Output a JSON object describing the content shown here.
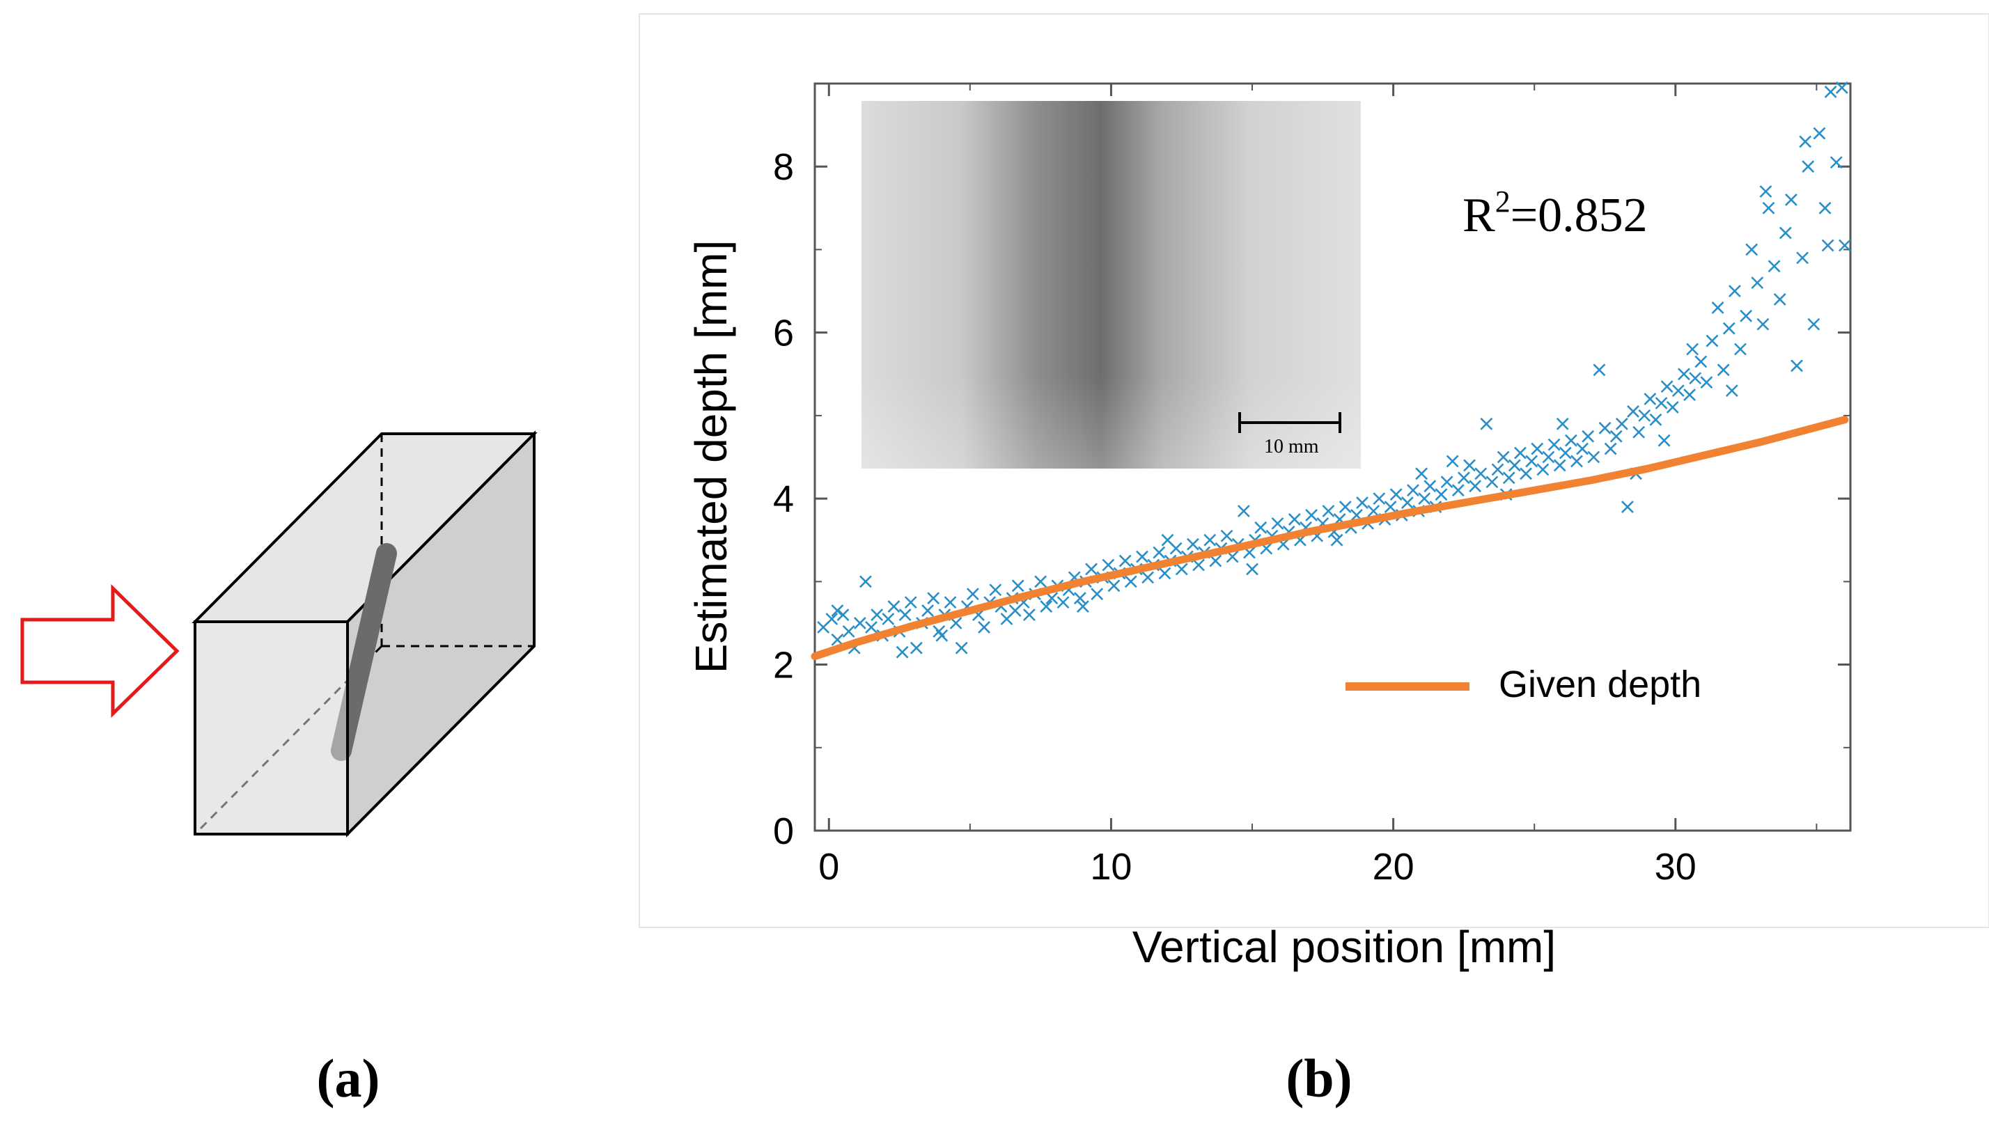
{
  "panel_a": {
    "label": "(a)",
    "arrow_color": "#e31b1b",
    "box_fill": "#d6d6d6",
    "rod_color": "#6b6b6b"
  },
  "panel_b": {
    "label": "(b)",
    "r_squared": {
      "prefix": "R",
      "sup": "2",
      "value": "=0.852"
    },
    "inset": {
      "scale_bar_label": "10 mm"
    },
    "legend_label": "Given depth"
  },
  "chart_data": {
    "type": "scatter",
    "xlabel": "Vertical position [mm]",
    "ylabel": "Estimated depth [mm]",
    "xlim": [
      -0.5,
      36.2
    ],
    "ylim": [
      0,
      9
    ],
    "xticks": [
      0,
      10,
      20,
      30
    ],
    "xticks_labels": [
      "0",
      "10",
      "20",
      "30"
    ],
    "yticks": [
      0,
      2,
      4,
      6,
      8
    ],
    "yticks_labels": [
      "0",
      "2",
      "4",
      "6",
      "8"
    ],
    "grid": false,
    "legend": "right-lower",
    "series": [
      {
        "name": "Estimated depth",
        "marker": "x",
        "color": "#2a8fc6",
        "points": [
          [
            -0.2,
            2.45
          ],
          [
            0.1,
            2.55
          ],
          [
            0.3,
            2.3
          ],
          [
            0.5,
            2.6
          ],
          [
            0.7,
            2.4
          ],
          [
            0.9,
            2.2
          ],
          [
            1.1,
            2.5
          ],
          [
            1.3,
            3.0
          ],
          [
            1.5,
            2.45
          ],
          [
            1.7,
            2.6
          ],
          [
            1.9,
            2.35
          ],
          [
            2.1,
            2.55
          ],
          [
            2.3,
            2.7
          ],
          [
            2.5,
            2.4
          ],
          [
            2.7,
            2.6
          ],
          [
            2.9,
            2.75
          ],
          [
            3.1,
            2.2
          ],
          [
            3.3,
            2.5
          ],
          [
            3.5,
            2.65
          ],
          [
            3.7,
            2.8
          ],
          [
            3.9,
            2.4
          ],
          [
            4.1,
            2.6
          ],
          [
            4.3,
            2.75
          ],
          [
            4.5,
            2.5
          ],
          [
            4.7,
            2.2
          ],
          [
            4.9,
            2.7
          ],
          [
            5.1,
            2.85
          ],
          [
            5.3,
            2.6
          ],
          [
            5.5,
            2.45
          ],
          [
            5.7,
            2.75
          ],
          [
            5.9,
            2.9
          ],
          [
            6.1,
            2.7
          ],
          [
            6.3,
            2.55
          ],
          [
            6.5,
            2.8
          ],
          [
            6.7,
            2.95
          ],
          [
            6.9,
            2.75
          ],
          [
            7.1,
            2.6
          ],
          [
            7.3,
            2.85
          ],
          [
            7.5,
            3.0
          ],
          [
            7.7,
            2.7
          ],
          [
            7.9,
            2.8
          ],
          [
            8.1,
            2.95
          ],
          [
            8.3,
            2.75
          ],
          [
            8.5,
            2.9
          ],
          [
            8.7,
            3.05
          ],
          [
            8.9,
            2.8
          ],
          [
            9.1,
            3.0
          ],
          [
            9.3,
            3.15
          ],
          [
            9.5,
            2.85
          ],
          [
            9.7,
            3.05
          ],
          [
            9.9,
            3.2
          ],
          [
            10.1,
            2.95
          ],
          [
            10.3,
            3.1
          ],
          [
            10.5,
            3.25
          ],
          [
            10.7,
            3.0
          ],
          [
            10.9,
            3.15
          ],
          [
            11.1,
            3.3
          ],
          [
            11.3,
            3.05
          ],
          [
            11.5,
            3.2
          ],
          [
            11.7,
            3.35
          ],
          [
            11.9,
            3.1
          ],
          [
            12.1,
            3.25
          ],
          [
            12.3,
            3.4
          ],
          [
            12.5,
            3.15
          ],
          [
            12.7,
            3.3
          ],
          [
            12.9,
            3.45
          ],
          [
            13.1,
            3.2
          ],
          [
            13.3,
            3.35
          ],
          [
            13.5,
            3.5
          ],
          [
            13.7,
            3.25
          ],
          [
            13.9,
            3.4
          ],
          [
            14.1,
            3.55
          ],
          [
            14.3,
            3.3
          ],
          [
            14.5,
            3.45
          ],
          [
            14.7,
            3.85
          ],
          [
            14.9,
            3.35
          ],
          [
            15.1,
            3.5
          ],
          [
            15.3,
            3.65
          ],
          [
            15.5,
            3.4
          ],
          [
            15.7,
            3.55
          ],
          [
            15.9,
            3.7
          ],
          [
            16.1,
            3.45
          ],
          [
            16.3,
            3.6
          ],
          [
            16.5,
            3.75
          ],
          [
            16.7,
            3.5
          ],
          [
            16.9,
            3.65
          ],
          [
            17.1,
            3.8
          ],
          [
            17.3,
            3.55
          ],
          [
            17.5,
            3.7
          ],
          [
            17.7,
            3.85
          ],
          [
            17.9,
            3.6
          ],
          [
            18.1,
            3.75
          ],
          [
            18.3,
            3.9
          ],
          [
            18.5,
            3.65
          ],
          [
            18.7,
            3.8
          ],
          [
            18.9,
            3.95
          ],
          [
            19.1,
            3.7
          ],
          [
            19.3,
            3.85
          ],
          [
            19.5,
            4.0
          ],
          [
            19.7,
            3.75
          ],
          [
            19.9,
            3.9
          ],
          [
            20.1,
            4.05
          ],
          [
            20.3,
            3.8
          ],
          [
            20.5,
            3.95
          ],
          [
            20.7,
            4.1
          ],
          [
            20.9,
            3.85
          ],
          [
            21.1,
            4.0
          ],
          [
            21.3,
            4.15
          ],
          [
            21.5,
            3.9
          ],
          [
            21.7,
            4.05
          ],
          [
            21.9,
            4.2
          ],
          [
            22.1,
            4.45
          ],
          [
            22.3,
            4.1
          ],
          [
            22.5,
            4.25
          ],
          [
            22.7,
            4.4
          ],
          [
            22.9,
            4.15
          ],
          [
            23.1,
            4.3
          ],
          [
            23.3,
            4.9
          ],
          [
            23.5,
            4.2
          ],
          [
            23.7,
            4.35
          ],
          [
            23.9,
            4.5
          ],
          [
            24.1,
            4.25
          ],
          [
            24.3,
            4.4
          ],
          [
            24.5,
            4.55
          ],
          [
            24.7,
            4.3
          ],
          [
            24.9,
            4.45
          ],
          [
            25.1,
            4.6
          ],
          [
            25.3,
            4.35
          ],
          [
            25.5,
            4.5
          ],
          [
            25.7,
            4.65
          ],
          [
            25.9,
            4.4
          ],
          [
            26.1,
            4.55
          ],
          [
            26.3,
            4.7
          ],
          [
            26.5,
            4.45
          ],
          [
            26.7,
            4.6
          ],
          [
            26.9,
            4.75
          ],
          [
            27.1,
            4.5
          ],
          [
            27.3,
            5.55
          ],
          [
            27.5,
            4.85
          ],
          [
            27.7,
            4.6
          ],
          [
            27.9,
            4.75
          ],
          [
            28.1,
            4.9
          ],
          [
            28.3,
            3.9
          ],
          [
            28.5,
            5.05
          ],
          [
            28.7,
            4.8
          ],
          [
            28.9,
            5.0
          ],
          [
            29.1,
            5.2
          ],
          [
            29.3,
            4.95
          ],
          [
            29.5,
            5.15
          ],
          [
            29.7,
            5.35
          ],
          [
            29.9,
            5.1
          ],
          [
            30.1,
            5.3
          ],
          [
            30.3,
            5.5
          ],
          [
            30.5,
            5.25
          ],
          [
            30.7,
            5.45
          ],
          [
            30.9,
            5.65
          ],
          [
            31.1,
            5.4
          ],
          [
            31.3,
            5.9
          ],
          [
            31.5,
            6.3
          ],
          [
            31.7,
            5.55
          ],
          [
            31.9,
            6.05
          ],
          [
            32.1,
            6.5
          ],
          [
            32.3,
            5.8
          ],
          [
            32.5,
            6.2
          ],
          [
            32.7,
            7.0
          ],
          [
            32.9,
            6.6
          ],
          [
            33.1,
            6.1
          ],
          [
            33.3,
            7.5
          ],
          [
            33.5,
            6.8
          ],
          [
            33.7,
            6.4
          ],
          [
            33.9,
            7.2
          ],
          [
            34.1,
            7.6
          ],
          [
            34.3,
            5.6
          ],
          [
            34.5,
            6.9
          ],
          [
            34.7,
            8.0
          ],
          [
            34.9,
            6.1
          ],
          [
            35.1,
            8.4
          ],
          [
            35.3,
            7.5
          ],
          [
            35.5,
            8.9
          ],
          [
            35.7,
            8.05
          ],
          [
            35.9,
            8.95
          ],
          [
            36.0,
            7.05
          ],
          [
            0.3,
            2.65
          ],
          [
            2.6,
            2.15
          ],
          [
            4.0,
            2.35
          ],
          [
            6.6,
            2.65
          ],
          [
            9.0,
            2.7
          ],
          [
            12.0,
            3.5
          ],
          [
            15.0,
            3.15
          ],
          [
            18.0,
            3.5
          ],
          [
            21.0,
            4.3
          ],
          [
            24.0,
            4.05
          ],
          [
            26.0,
            4.9
          ],
          [
            28.6,
            4.3
          ],
          [
            29.6,
            4.7
          ],
          [
            30.6,
            5.8
          ],
          [
            32.0,
            5.3
          ],
          [
            33.2,
            7.7
          ],
          [
            34.6,
            8.3
          ],
          [
            35.4,
            7.05
          ]
        ]
      },
      {
        "name": "Given depth",
        "marker": "line",
        "color": "#f08232",
        "x": [
          -0.5,
          1,
          3,
          5,
          7,
          9,
          11,
          13,
          15,
          17,
          19,
          21,
          23,
          25,
          27,
          29,
          31,
          33,
          35,
          36
        ],
        "values": [
          2.1,
          2.27,
          2.47,
          2.65,
          2.83,
          3.0,
          3.15,
          3.3,
          3.45,
          3.6,
          3.73,
          3.86,
          3.98,
          4.1,
          4.22,
          4.36,
          4.52,
          4.68,
          4.86,
          4.95
        ]
      }
    ]
  }
}
